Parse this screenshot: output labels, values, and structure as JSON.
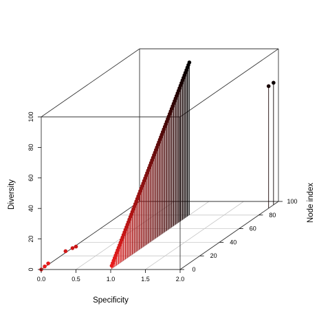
{
  "chart_data": {
    "type": "scatter3d",
    "title": "",
    "xlabel": "Specificity",
    "ylabel": "Node index",
    "zlabel": "Diversity",
    "xlim": [
      0,
      2
    ],
    "ylim": [
      0,
      100
    ],
    "zlim": [
      0,
      100
    ],
    "x_ticks": [
      "0.0",
      "0.5",
      "1.0",
      "1.5",
      "2.0"
    ],
    "y_ticks": [
      "0",
      "20",
      "40",
      "60",
      "80",
      "100"
    ],
    "z_ticks": [
      "0",
      "20",
      "40",
      "60",
      "80",
      "100"
    ],
    "grid": true,
    "box": true,
    "vertical_drop_lines": true,
    "color_gradient": [
      "#ee1c1c",
      "#000000"
    ],
    "series": [
      {
        "points_x": [
          0.0,
          0.05,
          0.1,
          0.35,
          0.45,
          0.5
        ],
        "points_y": [
          0,
          0,
          0,
          0,
          0,
          0
        ],
        "points_z": [
          0,
          2,
          4,
          12,
          14,
          15
        ],
        "drop_lines": false
      },
      {
        "start": {
          "x": 1.0,
          "y": 1,
          "z": 2
        },
        "end": {
          "x": 1.0,
          "y": 80,
          "z": 100
        },
        "count": 80,
        "drop_lines": true
      },
      {
        "points_x": [
          2.0,
          2.0
        ],
        "points_y": [
          90,
          95
        ],
        "points_z": [
          80,
          80
        ],
        "drop_lines": true
      }
    ]
  }
}
